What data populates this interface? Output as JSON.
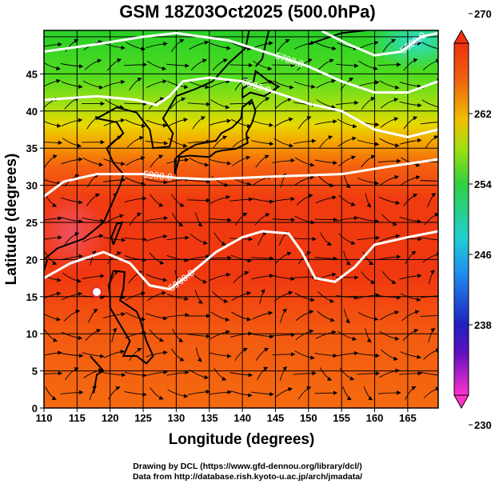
{
  "title": "GSM 18Z03Oct2025 (500.0hPa)",
  "chart_data": {
    "type": "heatmap",
    "title": "GSM 18Z03Oct2025 (500.0hPa)",
    "xlabel": "Longitude (degrees)",
    "ylabel": "Latitude  (degrees)",
    "xlim": [
      110,
      169.6
    ],
    "ylim": [
      0,
      50.8
    ],
    "xticks": [
      "110",
      "115",
      "120",
      "125",
      "130",
      "135",
      "140",
      "145",
      "150",
      "155",
      "160",
      "165"
    ],
    "yticks": [
      "0",
      "5",
      "10",
      "15",
      "20",
      "25",
      "30",
      "35",
      "40",
      "45"
    ],
    "grid": true,
    "colorbar": {
      "ticks": [
        "230",
        "238",
        "246",
        "254",
        "262",
        "270"
      ],
      "range": [
        230,
        270
      ],
      "colors": [
        "#ff33cc",
        "#2020c0",
        "#20b0f0",
        "#30d040",
        "#f0c000",
        "#f03010"
      ]
    },
    "contours": [
      {
        "label": "5600.0",
        "points": [
          [
            152,
            50.8
          ],
          [
            156,
            49
          ],
          [
            160,
            47.5
          ],
          [
            164,
            48
          ],
          [
            167,
            50
          ],
          [
            169.6,
            50.5
          ]
        ]
      },
      {
        "label": "5700.0",
        "points": [
          [
            110,
            48
          ],
          [
            118,
            49
          ],
          [
            125,
            50
          ],
          [
            130,
            50.5
          ],
          [
            138,
            49.5
          ],
          [
            145,
            47.5
          ],
          [
            150,
            46
          ],
          [
            155,
            44
          ],
          [
            160,
            42.5
          ],
          [
            165,
            42.5
          ],
          [
            169.6,
            44
          ]
        ]
      },
      {
        "label": "5800.0",
        "points": [
          [
            110,
            41.5
          ],
          [
            118,
            42
          ],
          [
            124,
            41.5
          ],
          [
            127,
            40.8
          ],
          [
            129,
            42
          ],
          [
            131,
            44
          ],
          [
            135,
            44.5
          ],
          [
            140,
            44
          ],
          [
            145,
            42.5
          ],
          [
            150,
            41
          ],
          [
            155,
            40
          ],
          [
            160,
            37.5
          ],
          [
            165,
            36.5
          ],
          [
            169.6,
            37.5
          ]
        ]
      },
      {
        "label": "5900.0",
        "points": [
          [
            110,
            28.5
          ],
          [
            113,
            30.5
          ],
          [
            118,
            31.5
          ],
          [
            125,
            31.5
          ],
          [
            130,
            31
          ],
          [
            135,
            30.8
          ],
          [
            145,
            31.2
          ],
          [
            155,
            31.5
          ],
          [
            162,
            32.5
          ],
          [
            169.6,
            33.5
          ]
        ]
      },
      {
        "label": "5900.0",
        "points": [
          [
            110,
            17.5
          ],
          [
            114,
            19.5
          ],
          [
            119,
            21
          ],
          [
            123,
            19.5
          ],
          [
            126,
            16.5
          ],
          [
            129,
            16
          ],
          [
            132,
            18
          ],
          [
            136,
            21
          ],
          [
            140,
            23
          ],
          [
            143,
            23.8
          ],
          [
            147,
            23.5
          ],
          [
            149,
            21
          ],
          [
            151,
            17.5
          ],
          [
            154,
            17
          ],
          [
            157,
            19
          ],
          [
            160,
            22
          ],
          [
            165,
            23
          ],
          [
            169.6,
            23.8
          ]
        ]
      }
    ]
  },
  "footer": {
    "line1": "Drawing by DCL (https://www.gfd-dennou.org/library/dcl/)",
    "line2": "Data from http://database.rish.kyoto-u.ac.jp/arch/jmadata/"
  }
}
